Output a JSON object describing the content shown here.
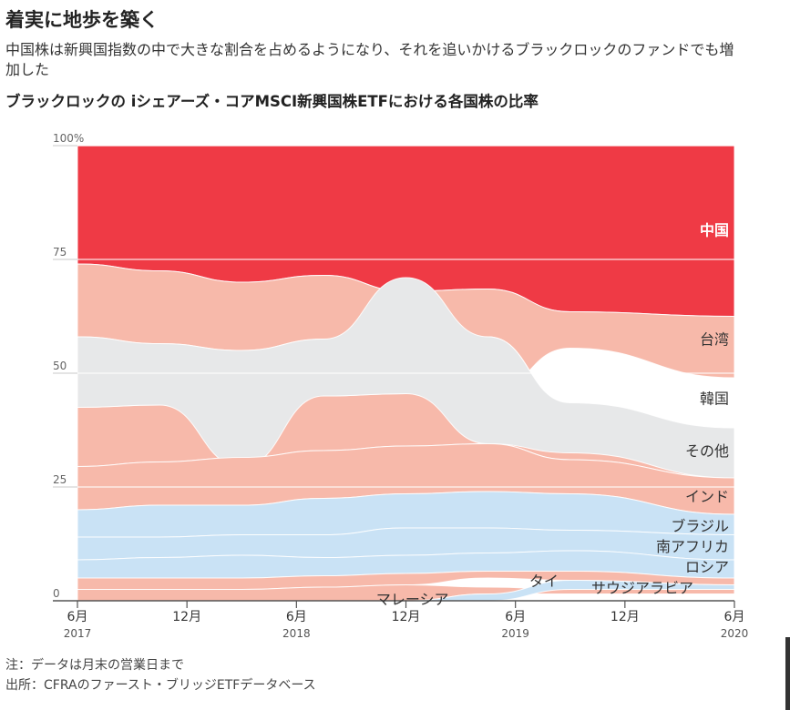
{
  "title": "着実に地歩を築く",
  "subtitle": "中国株は新興国指数の中で大きな割合を占めるようになり、それを追いかけるブラックロックのファンドでも増加した",
  "chart_title": "ブラックロックの iシェアーズ・コアMSCI新興国株ETFにおける各国株の比率",
  "note": "注：データは月末の営業日まで",
  "source": "出所：CFRAのファースト・ブリッジETFデータベース",
  "chart_data": {
    "type": "area",
    "subtype": "rank-ordered streamgraph (bump area)",
    "x": [
      2017.42,
      2017.92,
      2018.42,
      2018.92,
      2019.42,
      2019.92,
      2020.42
    ],
    "x_ticks": [
      {
        "value": 2017.42,
        "label": "6月",
        "year": "2017"
      },
      {
        "value": 2017.92,
        "label": "12月",
        "year": ""
      },
      {
        "value": 2018.42,
        "label": "6月",
        "year": "2018"
      },
      {
        "value": 2018.92,
        "label": "12月",
        "year": ""
      },
      {
        "value": 2019.42,
        "label": "6月",
        "year": "2019"
      },
      {
        "value": 2019.92,
        "label": "12月",
        "year": ""
      },
      {
        "value": 2020.42,
        "label": "6月",
        "year": "2020"
      }
    ],
    "y_ticks": [
      "0",
      "25",
      "50",
      "75",
      "100%"
    ],
    "y_tick_values": [
      0,
      25,
      50,
      75,
      100
    ],
    "ylim": [
      0,
      100
    ],
    "grid": true,
    "unit": "%",
    "series": [
      {
        "name": "中国",
        "color": "#ef3a45",
        "label_color": "#ffffff",
        "label_bold": true,
        "lower": [
          [
            0,
            74
          ],
          [
            0.5,
            72.5
          ],
          [
            1,
            70
          ],
          [
            1.5,
            71.5
          ],
          [
            2,
            68
          ],
          [
            2.5,
            68.5
          ],
          [
            3,
            63.5
          ],
          [
            4,
            62.5
          ]
        ],
        "upper": [
          [
            0,
            100
          ],
          [
            4,
            100
          ]
        ]
      },
      {
        "name": "台湾",
        "color": "#f7b9aa",
        "lower": [
          [
            0,
            58
          ],
          [
            0.5,
            56.5
          ],
          [
            1,
            55
          ],
          [
            1.5,
            57.5
          ],
          [
            2,
            58
          ],
          [
            2.5,
            45.5
          ],
          [
            3,
            55.5
          ],
          [
            4,
            49
          ]
        ],
        "upper": [
          [
            0,
            74
          ],
          [
            0.5,
            72.5
          ],
          [
            1,
            70
          ],
          [
            1.5,
            71.5
          ],
          [
            2,
            68
          ],
          [
            2.5,
            68.5
          ],
          [
            3,
            63.5
          ],
          [
            4,
            62.5
          ]
        ]
      },
      {
        "name": "韓国",
        "color": "#f7b9aa",
        "lower": [
          [
            0,
            29.5
          ],
          [
            0.5,
            30.5
          ],
          [
            1,
            31.5
          ],
          [
            1.5,
            33
          ],
          [
            2,
            34
          ],
          [
            2.5,
            34.5
          ],
          [
            3,
            31
          ],
          [
            4,
            27
          ]
        ],
        "upper": [
          [
            0,
            42.5
          ],
          [
            0.5,
            43
          ],
          [
            1,
            54.5
          ],
          [
            1.5,
            45
          ],
          [
            2,
            45.5
          ],
          [
            2.5,
            58
          ],
          [
            3,
            43.5
          ],
          [
            4,
            38
          ]
        ]
      },
      {
        "name": "その他",
        "color": "#e7e8e9",
        "lower": [
          [
            0,
            42.5
          ],
          [
            0.5,
            43
          ],
          [
            1,
            29.5
          ],
          [
            1.5,
            45
          ],
          [
            2,
            45.5
          ],
          [
            2.5,
            34.5
          ],
          [
            3,
            32.5
          ],
          [
            4,
            27
          ]
        ],
        "upper": [
          [
            0,
            58
          ],
          [
            0.5,
            56.5
          ],
          [
            1,
            55
          ],
          [
            1.5,
            57.5
          ],
          [
            2,
            71
          ],
          [
            2.5,
            58
          ],
          [
            3,
            43.5
          ],
          [
            4,
            38
          ]
        ]
      },
      {
        "name": "インド",
        "color": "#f7b9aa",
        "lower": [
          [
            0,
            20
          ],
          [
            0.5,
            21
          ],
          [
            1,
            21
          ],
          [
            1.5,
            22.5
          ],
          [
            2,
            23.5
          ],
          [
            2.5,
            24
          ],
          [
            3,
            23.5
          ],
          [
            4,
            19
          ]
        ],
        "upper": [
          [
            0,
            29.5
          ],
          [
            0.5,
            30.5
          ],
          [
            1,
            31.5
          ],
          [
            1.5,
            33
          ],
          [
            2,
            34
          ],
          [
            2.5,
            34.5
          ],
          [
            3,
            31
          ],
          [
            4,
            27
          ]
        ]
      },
      {
        "name": "ブラジル",
        "color": "#c9e2f5",
        "lower": [
          [
            0,
            14
          ],
          [
            0.5,
            14
          ],
          [
            1,
            14.5
          ],
          [
            1.5,
            14.5
          ],
          [
            2,
            16
          ],
          [
            2.5,
            16
          ],
          [
            3,
            15.5
          ],
          [
            4,
            14.5
          ]
        ],
        "upper": [
          [
            0,
            20
          ],
          [
            0.5,
            21
          ],
          [
            1,
            21
          ],
          [
            1.5,
            22.5
          ],
          [
            2,
            23.5
          ],
          [
            2.5,
            24
          ],
          [
            3,
            23.5
          ],
          [
            4,
            19
          ]
        ]
      },
      {
        "name": "南アフリカ",
        "color": "#c9e2f5",
        "lower": [
          [
            0,
            9
          ],
          [
            0.5,
            9.5
          ],
          [
            1,
            10
          ],
          [
            1.5,
            9.5
          ],
          [
            2,
            10
          ],
          [
            2.5,
            10.5
          ],
          [
            3,
            11
          ],
          [
            4,
            9
          ]
        ],
        "upper": [
          [
            0,
            14
          ],
          [
            0.5,
            14
          ],
          [
            1,
            14.5
          ],
          [
            1.5,
            14.5
          ],
          [
            2,
            16
          ],
          [
            2.5,
            16
          ],
          [
            3,
            15.5
          ],
          [
            4,
            14.5
          ]
        ]
      },
      {
        "name": "ロシア",
        "color": "#c9e2f5",
        "lower": [
          [
            0,
            5
          ],
          [
            0.5,
            5
          ],
          [
            1,
            5
          ],
          [
            1.5,
            5.5
          ],
          [
            2,
            6
          ],
          [
            2.5,
            6.5
          ],
          [
            3,
            6.5
          ],
          [
            4,
            5
          ]
        ],
        "upper": [
          [
            0,
            9
          ],
          [
            0.5,
            9.5
          ],
          [
            1,
            10
          ],
          [
            1.5,
            9.5
          ],
          [
            2,
            10
          ],
          [
            2.5,
            10.5
          ],
          [
            3,
            11
          ],
          [
            4,
            9
          ]
        ]
      },
      {
        "name": "タイ",
        "color": "#f7b9aa",
        "lower": [
          [
            0,
            2.5
          ],
          [
            0.5,
            2.5
          ],
          [
            1,
            2.5
          ],
          [
            1.5,
            3
          ],
          [
            2,
            3.5
          ],
          [
            2.5,
            5
          ],
          [
            3,
            4.5
          ],
          [
            4,
            3.5
          ]
        ],
        "upper": [
          [
            0,
            5
          ],
          [
            0.5,
            5
          ],
          [
            1,
            5
          ],
          [
            1.5,
            5.5
          ],
          [
            2,
            6
          ],
          [
            2.5,
            6.5
          ],
          [
            3,
            6.5
          ],
          [
            4,
            5
          ]
        ]
      },
      {
        "name": "マレーシア",
        "color": "#f7b9aa",
        "lower": [
          [
            0,
            0
          ],
          [
            0.5,
            0
          ],
          [
            1,
            0
          ],
          [
            1.5,
            0
          ],
          [
            2,
            0
          ],
          [
            2.5,
            1.5
          ],
          [
            3,
            1.5
          ],
          [
            4,
            1.5
          ]
        ],
        "upper": [
          [
            0,
            2.5
          ],
          [
            0.5,
            2.5
          ],
          [
            1,
            2.5
          ],
          [
            1.5,
            3
          ],
          [
            2,
            3.5
          ],
          [
            2.5,
            3
          ],
          [
            3,
            2.5
          ],
          [
            4,
            2.5
          ]
        ]
      },
      {
        "name": "サウジアラビア",
        "color": "#c9e2f5",
        "lower": [
          [
            0,
            0
          ],
          [
            2,
            0
          ],
          [
            2.5,
            0
          ],
          [
            3,
            2.5
          ],
          [
            4,
            2.5
          ]
        ],
        "upper": [
          [
            0,
            0
          ],
          [
            2,
            0
          ],
          [
            2.5,
            1.5
          ],
          [
            3,
            4.5
          ],
          [
            4,
            3.5
          ]
        ]
      }
    ],
    "labels": [
      {
        "text": "中国",
        "x": 2020.42,
        "y": 81.5,
        "anchor": "end",
        "bold": true,
        "color": "#ffffff"
      },
      {
        "text": "台湾",
        "x": 2020.42,
        "y": 57.5,
        "anchor": "end"
      },
      {
        "text": "韓国",
        "x": 2020.42,
        "y": 44.5,
        "anchor": "end"
      },
      {
        "text": "その他",
        "x": 2020.42,
        "y": 33,
        "anchor": "end"
      },
      {
        "text": "インド",
        "x": 2020.42,
        "y": 23,
        "anchor": "end"
      },
      {
        "text": "ブラジル",
        "x": 2020.42,
        "y": 16.5,
        "anchor": "end"
      },
      {
        "text": "南アフリカ",
        "x": 2020.42,
        "y": 12,
        "anchor": "end"
      },
      {
        "text": "ロシア",
        "x": 2020.42,
        "y": 7.5,
        "anchor": "end"
      },
      {
        "text": "タイ",
        "x": 2019.55,
        "y": 4.4,
        "anchor": "middle"
      },
      {
        "text": "サウジアラビア",
        "x": 2020.0,
        "y": 2.9,
        "anchor": "middle"
      },
      {
        "text": "マレーシア",
        "x": 2018.95,
        "y": 0.4,
        "anchor": "middle"
      }
    ]
  }
}
